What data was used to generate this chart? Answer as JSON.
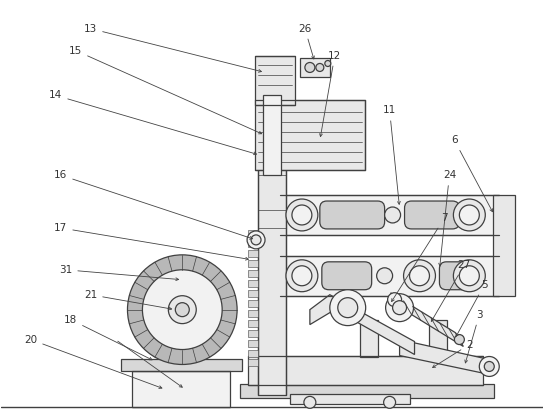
{
  "background_color": "#ffffff",
  "line_color": "#404040",
  "lw_main": 0.9,
  "lw_thin": 0.5,
  "fig_width": 5.44,
  "fig_height": 4.16,
  "dpi": 100
}
